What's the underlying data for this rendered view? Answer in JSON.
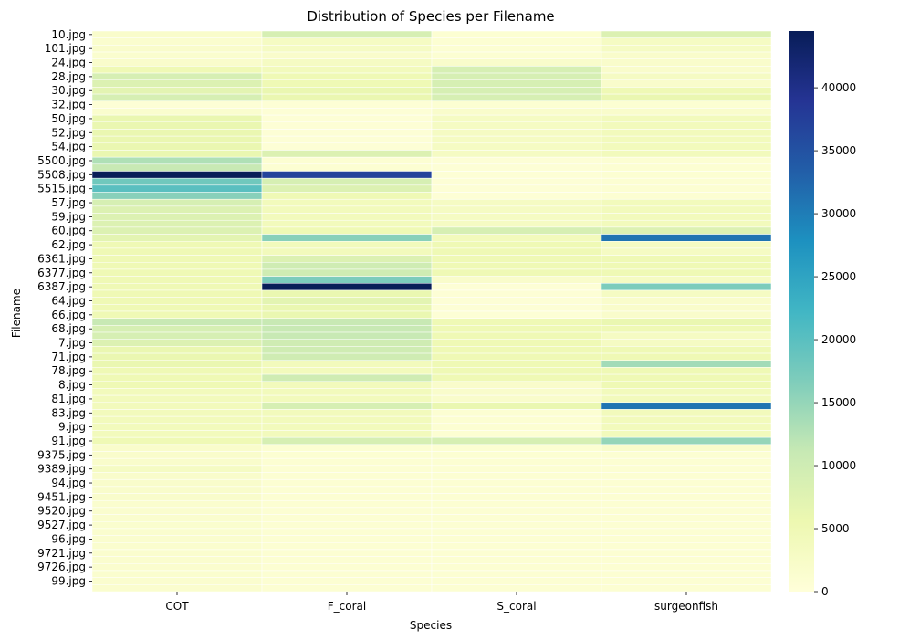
{
  "chart_data": {
    "type": "heatmap",
    "title": "Distribution of Species per Filename",
    "xlabel": "Species",
    "ylabel": "Filename",
    "columns": [
      "COT",
      "F_coral",
      "S_coral",
      "surgeonfish"
    ],
    "row_tick_labels": [
      "10.jpg",
      "101.jpg",
      "24.jpg",
      "28.jpg",
      "30.jpg",
      "32.jpg",
      "50.jpg",
      "52.jpg",
      "54.jpg",
      "5500.jpg",
      "5508.jpg",
      "5515.jpg",
      "57.jpg",
      "59.jpg",
      "60.jpg",
      "62.jpg",
      "6361.jpg",
      "6377.jpg",
      "6387.jpg",
      "64.jpg",
      "66.jpg",
      "68.jpg",
      "7.jpg",
      "71.jpg",
      "78.jpg",
      "8.jpg",
      "81.jpg",
      "83.jpg",
      "9.jpg",
      "91.jpg",
      "9375.jpg",
      "9389.jpg",
      "94.jpg",
      "9451.jpg",
      "9520.jpg",
      "9527.jpg",
      "96.jpg",
      "9721.jpg",
      "9726.jpg",
      "99.jpg"
    ],
    "row_count": 80,
    "values": [
      [
        2000,
        9000,
        1000,
        8000
      ],
      [
        1500,
        3000,
        1000,
        3000
      ],
      [
        2000,
        3000,
        1000,
        3000
      ],
      [
        1500,
        2000,
        1000,
        2000
      ],
      [
        2000,
        3000,
        2000,
        2000
      ],
      [
        5000,
        4000,
        9000,
        2000
      ],
      [
        9000,
        5000,
        9000,
        3000
      ],
      [
        8000,
        5000,
        9000,
        2000
      ],
      [
        7000,
        6000,
        9000,
        5000
      ],
      [
        9000,
        6000,
        9000,
        6000
      ],
      [
        500,
        500,
        1000,
        1000
      ],
      [
        1500,
        500,
        2000,
        2000
      ],
      [
        6000,
        500,
        3000,
        4000
      ],
      [
        6000,
        500,
        3000,
        4000
      ],
      [
        6000,
        500,
        3000,
        4000
      ],
      [
        6000,
        500,
        3000,
        4000
      ],
      [
        6000,
        500,
        3000,
        4000
      ],
      [
        6000,
        8000,
        3000,
        4000
      ],
      [
        13000,
        1000,
        500,
        1000
      ],
      [
        11000,
        1000,
        500,
        1000
      ],
      [
        44500,
        37000,
        500,
        1000
      ],
      [
        18000,
        9000,
        500,
        1000
      ],
      [
        20000,
        8000,
        500,
        1000
      ],
      [
        16000,
        5000,
        500,
        1000
      ],
      [
        9000,
        4000,
        3000,
        4000
      ],
      [
        8000,
        4000,
        3000,
        4000
      ],
      [
        8000,
        4000,
        3000,
        4000
      ],
      [
        8000,
        4000,
        3000,
        4000
      ],
      [
        8000,
        5000,
        9000,
        8000
      ],
      [
        7000,
        16000,
        4000,
        31000
      ],
      [
        5000,
        4000,
        5000,
        3000
      ],
      [
        5000,
        4000,
        5000,
        3000
      ],
      [
        5000,
        8000,
        5000,
        5000
      ],
      [
        5000,
        10000,
        5000,
        5000
      ],
      [
        5000,
        10000,
        5000,
        5000
      ],
      [
        5000,
        17000,
        2000,
        3000
      ],
      [
        5000,
        44500,
        500,
        17000
      ],
      [
        5000,
        6000,
        500,
        3000
      ],
      [
        5000,
        7000,
        500,
        2000
      ],
      [
        5000,
        6000,
        500,
        2000
      ],
      [
        5000,
        6000,
        500,
        2000
      ],
      [
        11000,
        11000,
        5000,
        6000
      ],
      [
        9000,
        11000,
        5000,
        5000
      ],
      [
        9000,
        11000,
        5000,
        3000
      ],
      [
        8000,
        10000,
        5000,
        3000
      ],
      [
        6000,
        10000,
        5000,
        5000
      ],
      [
        6000,
        10000,
        5000,
        5000
      ],
      [
        6000,
        4000,
        5000,
        14000
      ],
      [
        5000,
        4000,
        5000,
        5000
      ],
      [
        5000,
        10000,
        5000,
        5000
      ],
      [
        5000,
        4000,
        2000,
        5000
      ],
      [
        4000,
        4000,
        2000,
        4000
      ],
      [
        4000,
        4000,
        2000,
        4000
      ],
      [
        4000,
        9000,
        6000,
        31000
      ],
      [
        4000,
        4000,
        1000,
        4000
      ],
      [
        4000,
        4000,
        1000,
        4000
      ],
      [
        4000,
        4000,
        1000,
        4000
      ],
      [
        4000,
        4000,
        1000,
        4000
      ],
      [
        5000,
        9000,
        9000,
        15000
      ],
      [
        2000,
        1000,
        1000,
        2000
      ],
      [
        2000,
        1000,
        1000,
        1000
      ],
      [
        2000,
        1000,
        1000,
        1000
      ],
      [
        3000,
        1000,
        1000,
        1000
      ],
      [
        2000,
        1000,
        1000,
        1000
      ],
      [
        2000,
        1000,
        1000,
        1000
      ],
      [
        2000,
        1000,
        1000,
        1000
      ],
      [
        2000,
        1000,
        1000,
        1000
      ],
      [
        1500,
        1000,
        1000,
        1000
      ],
      [
        1500,
        1000,
        1000,
        1000
      ],
      [
        1500,
        1000,
        1000,
        1000
      ],
      [
        1500,
        1000,
        1000,
        1000
      ],
      [
        1500,
        1000,
        1000,
        1000
      ],
      [
        1500,
        1000,
        1000,
        1000
      ],
      [
        1500,
        1000,
        1000,
        1000
      ],
      [
        1500,
        1000,
        1000,
        1000
      ],
      [
        1500,
        1000,
        1000,
        1000
      ],
      [
        1500,
        1000,
        1000,
        1000
      ],
      [
        1500,
        1000,
        1000,
        1000
      ],
      [
        1500,
        1000,
        1000,
        1000
      ],
      [
        1500,
        1000,
        1000,
        1000
      ]
    ],
    "colorbar": {
      "colormap": "YlGnBu",
      "vmin": 0,
      "vmax": 44500,
      "ticks": [
        0,
        5000,
        10000,
        15000,
        20000,
        25000,
        30000,
        35000,
        40000
      ]
    },
    "colormap_stops": [
      "#ffffd9",
      "#edf8b1",
      "#c7e9b4",
      "#7fcdbb",
      "#41b6c4",
      "#1d91c0",
      "#225ea8",
      "#253494",
      "#081d58"
    ],
    "grid_line_color": "#ffffff"
  }
}
